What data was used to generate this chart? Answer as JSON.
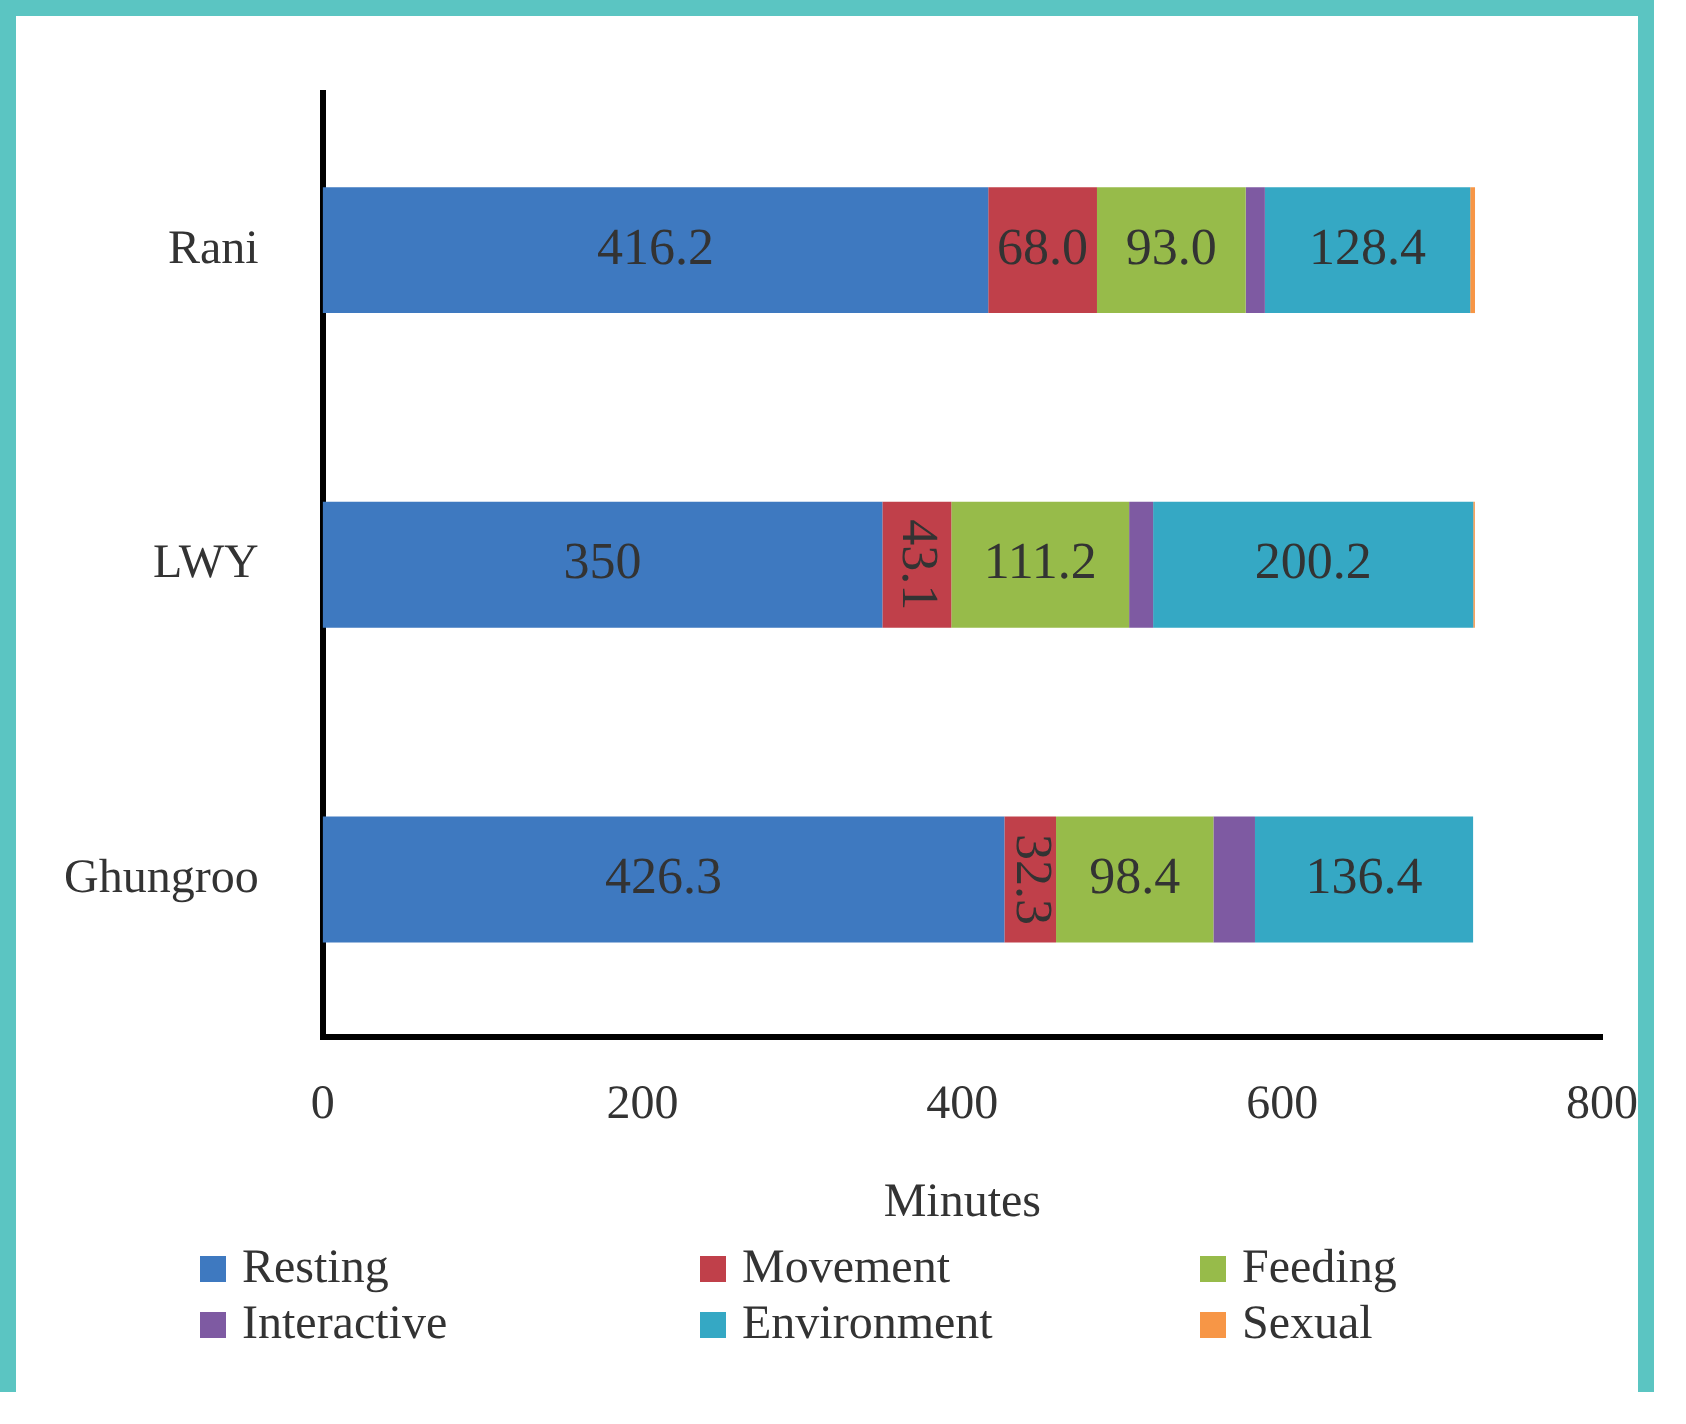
{
  "chart_data": {
    "type": "bar",
    "orientation": "horizontal",
    "stacked": true,
    "xlabel": "Minutes",
    "categories": [
      "Rani",
      "LWY",
      "Ghungroo"
    ],
    "series": [
      {
        "name": "Resting",
        "color": "#3e79c0",
        "values": [
          416.2,
          350,
          426.3
        ],
        "value_labels": [
          "416.2",
          "350",
          "426.3"
        ]
      },
      {
        "name": "Movement",
        "color": "#c0404a",
        "values": [
          68.0,
          43.1,
          32.3
        ],
        "value_labels": [
          "68.0",
          "43.1",
          "32.3"
        ]
      },
      {
        "name": "Feeding",
        "color": "#97bb4a",
        "values": [
          93.0,
          111.2,
          98.4
        ],
        "value_labels": [
          "93.0",
          "111.2",
          "98.4"
        ]
      },
      {
        "name": "Interactive",
        "color": "#7e5aa2",
        "values": [
          12,
          15,
          26
        ]
      },
      {
        "name": "Environment",
        "color": "#35a8c4",
        "values": [
          128.4,
          200.2,
          136.4
        ],
        "value_labels": [
          "128.4",
          "200.2",
          "136.4"
        ]
      },
      {
        "name": "Sexual",
        "color": "#f79646",
        "values": [
          3,
          1,
          0
        ]
      }
    ],
    "xlim": [
      0,
      800
    ],
    "xticks": [
      0,
      200,
      400,
      600,
      800
    ],
    "grid": false,
    "legend": "bottom"
  }
}
